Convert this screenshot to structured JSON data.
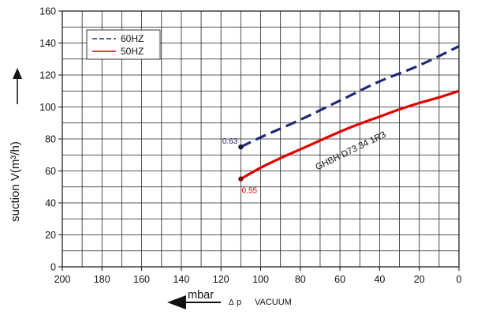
{
  "chart_data": {
    "type": "line",
    "x_axis": {
      "range": [
        200,
        0
      ],
      "reversed": true,
      "ticks": [
        200,
        180,
        160,
        140,
        120,
        100,
        80,
        60,
        40,
        20,
        0
      ],
      "unit_label": "mbar",
      "delta_symbol": "Δ",
      "label_p": "p",
      "label_vacuum": "VACUUM",
      "direction": "decreasing to the right"
    },
    "y_axis": {
      "range": [
        0,
        160
      ],
      "ticks": [
        0,
        20,
        40,
        60,
        80,
        100,
        120,
        140,
        160
      ],
      "label": "suction V(m³/h)"
    },
    "grid": true,
    "grid_x_step": 10,
    "grid_y_step": 10,
    "legend_position": "top-left",
    "series": [
      {
        "name": "60HZ",
        "color": "#1f2a78",
        "dash": true,
        "points": [
          [
            110,
            75
          ],
          [
            100,
            81
          ],
          [
            80,
            92
          ],
          [
            60,
            104
          ],
          [
            40,
            116
          ],
          [
            20,
            126
          ],
          [
            0,
            138
          ]
        ]
      },
      {
        "name": "50HZ",
        "color": "#e00000",
        "dash": false,
        "points": [
          [
            110,
            55
          ],
          [
            100,
            62
          ],
          [
            90,
            68
          ],
          [
            80,
            73.5
          ],
          [
            70,
            79
          ],
          [
            60,
            84.5
          ],
          [
            50,
            89.5
          ],
          [
            40,
            94
          ],
          [
            30,
            98.5
          ],
          [
            20,
            102.5
          ],
          [
            10,
            106
          ],
          [
            0,
            110
          ]
        ]
      }
    ],
    "markers": [
      {
        "label": "0.63",
        "x": 110,
        "y": 75,
        "color": "#1f2a78"
      },
      {
        "label": "0.55",
        "x": 110,
        "y": 55,
        "color": "#e00000"
      }
    ],
    "curve_label": {
      "text": "GHBH D73 34 1R3",
      "x": 54,
      "y": 71
    }
  }
}
